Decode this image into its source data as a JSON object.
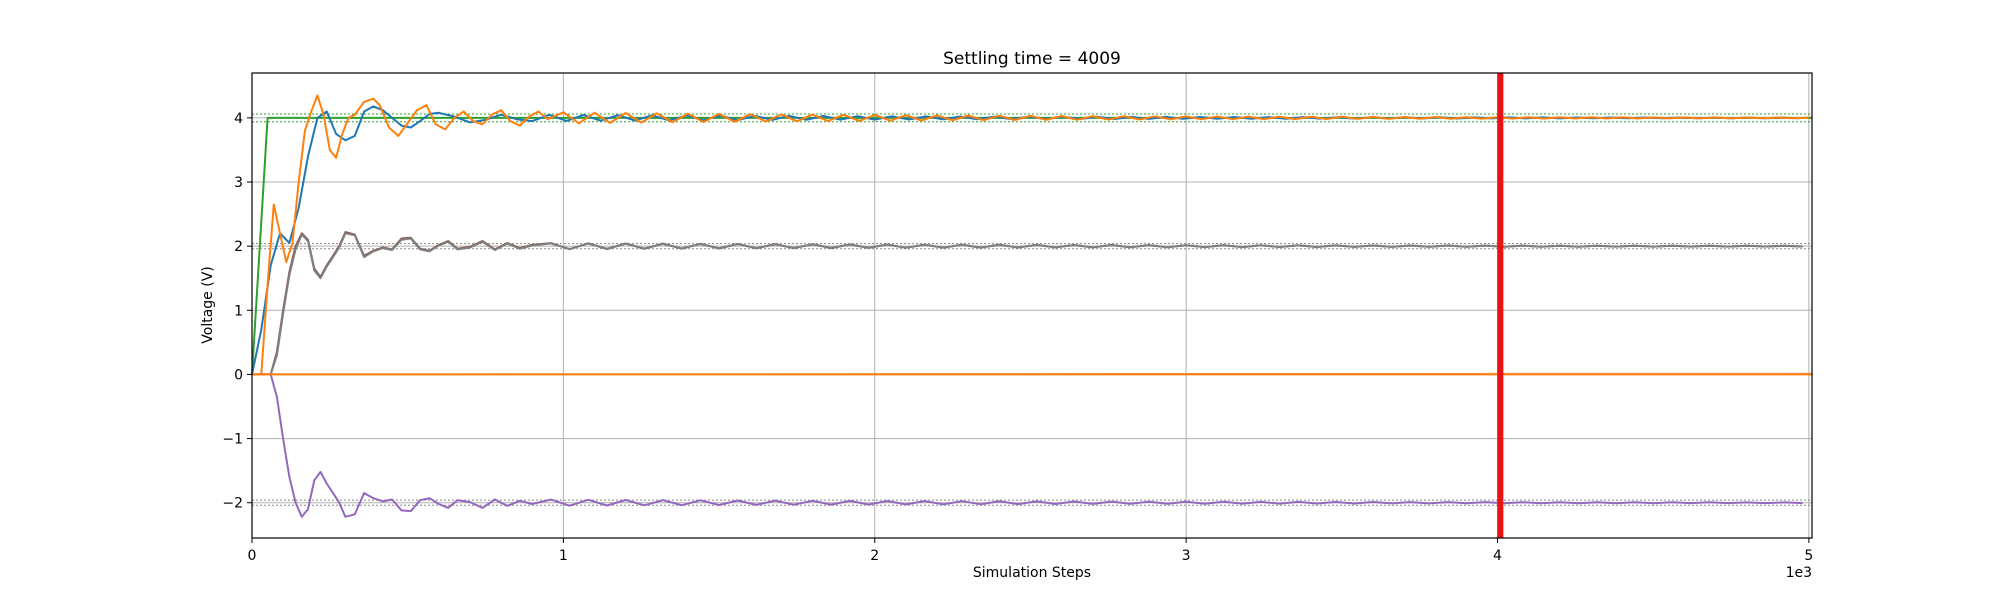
{
  "chart_data": {
    "type": "line",
    "title": "Settling time = 4009",
    "xlabel": "Simulation Steps",
    "ylabel": "Voltage (V)",
    "x_offset_label": "1e3",
    "xlim": [
      0,
      5010
    ],
    "ylim": [
      -2.55,
      4.7
    ],
    "x_ticks": [
      0,
      1000,
      2000,
      3000,
      4000,
      5000
    ],
    "x_tick_labels": [
      "0",
      "1",
      "2",
      "3",
      "4",
      "5"
    ],
    "y_ticks": [
      -2,
      -1,
      0,
      1,
      2,
      3,
      4
    ],
    "y_tick_labels": [
      "−2",
      "−1",
      "0",
      "1",
      "2",
      "3",
      "4"
    ],
    "grid": true,
    "settling_time": 4009,
    "settling_line_color": "#ee1111",
    "tolerance_bands": [
      {
        "values": [
          3.94,
          4.06
        ],
        "color": "#2ca02c",
        "style": "dotted"
      },
      {
        "values": [
          1.96,
          2.04
        ],
        "color": "#888888",
        "style": "dotted"
      },
      {
        "values": [
          -1.96,
          -2.04
        ],
        "color": "#888888",
        "style": "dotted"
      }
    ],
    "series": [
      {
        "color": "#2ca02c",
        "x": [
          0,
          50,
          60,
          5010
        ],
        "y": [
          0,
          4.0,
          4.0,
          4.0
        ]
      },
      {
        "color": "#1f77b4",
        "target": 4.0,
        "x": [
          0,
          30,
          60,
          90,
          120,
          150,
          180,
          210,
          240,
          270,
          300,
          330,
          360,
          390,
          420,
          450,
          480,
          510,
          540,
          570,
          600,
          650,
          700,
          750,
          800,
          850,
          900
        ],
        "y": [
          0,
          0.7,
          1.7,
          2.2,
          2.05,
          2.6,
          3.4,
          4.0,
          4.1,
          3.75,
          3.65,
          3.72,
          4.1,
          4.18,
          4.12,
          4.0,
          3.88,
          3.85,
          3.95,
          4.06,
          4.08,
          4.02,
          3.93,
          3.97,
          4.05,
          3.98,
          3.95
        ],
        "amp_start": 0.05,
        "period": 110,
        "decay": 1700
      },
      {
        "color": "#ff7f0e",
        "target": 4.0,
        "x": [
          0,
          30,
          50,
          70,
          90,
          110,
          130,
          150,
          170,
          190,
          210,
          230,
          250,
          270,
          290,
          310,
          330,
          360,
          390,
          410,
          440,
          470,
          500,
          530,
          560,
          590,
          620,
          650,
          680,
          710,
          740,
          770,
          800,
          830,
          860,
          890,
          920,
          950
        ],
        "y": [
          0,
          0,
          1.4,
          2.65,
          2.2,
          1.75,
          2.05,
          3.0,
          3.8,
          4.1,
          4.35,
          4.05,
          3.5,
          3.38,
          3.75,
          4.0,
          4.05,
          4.25,
          4.3,
          4.2,
          3.85,
          3.72,
          3.92,
          4.12,
          4.2,
          3.9,
          3.82,
          4.0,
          4.1,
          3.95,
          3.9,
          4.05,
          4.12,
          3.95,
          3.88,
          4.02,
          4.1,
          3.98
        ],
        "amp_start": 0.09,
        "period": 100,
        "decay": 1500
      },
      {
        "color": "#8c564b",
        "target": 2.0,
        "x": [
          0,
          60,
          80,
          100,
          120,
          140,
          160,
          180,
          200,
          220,
          240,
          260,
          280,
          300,
          330,
          360,
          390,
          420,
          450,
          480,
          510,
          540,
          570,
          600,
          630,
          660,
          700,
          740,
          780,
          820,
          860,
          900
        ],
        "y": [
          0,
          0,
          0.35,
          1.0,
          1.6,
          2.0,
          2.2,
          2.1,
          1.65,
          1.52,
          1.7,
          1.85,
          2.0,
          2.22,
          2.18,
          1.85,
          1.93,
          1.98,
          1.95,
          2.12,
          2.13,
          1.96,
          1.93,
          2.02,
          2.08,
          1.96,
          1.99,
          2.08,
          1.95,
          2.05,
          1.97,
          2.02
        ],
        "amp_start": 0.05,
        "period": 120,
        "decay": 1800
      },
      {
        "color": "#7f7f7f",
        "target": 2.0,
        "x": [
          0,
          60,
          80,
          100,
          120,
          140,
          160,
          180,
          200,
          220,
          240,
          260,
          280,
          300,
          330,
          360,
          390,
          420,
          450,
          480,
          510,
          540,
          570,
          600,
          630,
          660,
          700,
          740,
          780,
          820,
          860,
          900
        ],
        "y": [
          0,
          0,
          0.3,
          0.95,
          1.55,
          1.95,
          2.18,
          2.08,
          1.62,
          1.5,
          1.68,
          1.83,
          1.98,
          2.2,
          2.17,
          1.83,
          1.92,
          1.97,
          1.94,
          2.1,
          2.12,
          1.95,
          1.92,
          2.01,
          2.07,
          1.95,
          1.98,
          2.07,
          1.94,
          2.04,
          1.96,
          2.01
        ],
        "amp_start": 0.045,
        "period": 120,
        "decay": 1800
      },
      {
        "color": "#9467bd",
        "target": -2.0,
        "x": [
          0,
          60,
          80,
          100,
          120,
          140,
          160,
          180,
          200,
          220,
          240,
          260,
          280,
          300,
          330,
          360,
          390,
          420,
          450,
          480,
          510,
          540,
          570,
          600,
          630,
          660,
          700,
          740,
          780,
          820,
          860,
          900
        ],
        "y": [
          0,
          0,
          -0.35,
          -1.0,
          -1.6,
          -2.0,
          -2.22,
          -2.1,
          -1.65,
          -1.52,
          -1.7,
          -1.85,
          -2.0,
          -2.22,
          -2.18,
          -1.85,
          -1.93,
          -1.98,
          -1.95,
          -2.12,
          -2.13,
          -1.96,
          -1.93,
          -2.02,
          -2.08,
          -1.96,
          -1.99,
          -2.08,
          -1.95,
          -2.05,
          -1.97,
          -2.02
        ],
        "amp_start": 0.05,
        "period": 120,
        "decay": 1800
      },
      {
        "color": "#d4a373",
        "x": [
          0,
          5010
        ],
        "y": [
          0,
          0.01
        ]
      },
      {
        "color": "#ff7f0e",
        "x": [
          0,
          5010
        ],
        "y": [
          0,
          0
        ]
      }
    ]
  }
}
